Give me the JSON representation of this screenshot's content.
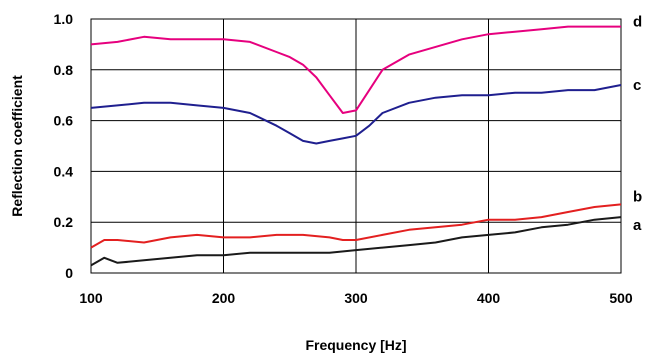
{
  "chart_data": {
    "type": "line",
    "xlabel": "Frequency [Hz]",
    "ylabel": "Reflection coefficient",
    "xlim": [
      100,
      500
    ],
    "ylim": [
      0,
      1.0
    ],
    "x_ticks": [
      100,
      200,
      300,
      400,
      500
    ],
    "y_ticks": [
      0,
      0.2,
      0.4,
      0.6,
      0.8,
      1.0
    ],
    "x_tick_labels": [
      "100",
      "200",
      "300",
      "400",
      "500"
    ],
    "y_tick_labels": [
      "0",
      "0.2",
      "0.4",
      "0.6",
      "0.8",
      "1.0"
    ],
    "grid": "vertical-and-horizontal",
    "legend": "labels at right end of each line",
    "series": [
      {
        "name": "d",
        "color": "#e6007e",
        "x": [
          100,
          120,
          140,
          160,
          180,
          200,
          220,
          240,
          250,
          260,
          270,
          280,
          290,
          300,
          310,
          320,
          340,
          360,
          380,
          400,
          420,
          440,
          460,
          480,
          500
        ],
        "y": [
          0.9,
          0.91,
          0.93,
          0.92,
          0.92,
          0.92,
          0.91,
          0.87,
          0.85,
          0.82,
          0.77,
          0.7,
          0.63,
          0.64,
          0.72,
          0.8,
          0.86,
          0.89,
          0.92,
          0.94,
          0.95,
          0.96,
          0.97,
          0.97,
          0.97
        ]
      },
      {
        "name": "c",
        "color": "#1f1f8f",
        "x": [
          100,
          120,
          140,
          160,
          180,
          200,
          220,
          240,
          250,
          260,
          270,
          280,
          290,
          300,
          310,
          320,
          340,
          360,
          380,
          400,
          420,
          440,
          460,
          480,
          500
        ],
        "y": [
          0.65,
          0.66,
          0.67,
          0.67,
          0.66,
          0.65,
          0.63,
          0.58,
          0.55,
          0.52,
          0.51,
          0.52,
          0.53,
          0.54,
          0.58,
          0.63,
          0.67,
          0.69,
          0.7,
          0.7,
          0.71,
          0.71,
          0.72,
          0.72,
          0.74
        ]
      },
      {
        "name": "b",
        "color": "#e32020",
        "x": [
          100,
          110,
          120,
          140,
          160,
          180,
          200,
          220,
          240,
          260,
          280,
          290,
          300,
          320,
          340,
          360,
          380,
          400,
          420,
          440,
          460,
          480,
          500
        ],
        "y": [
          0.1,
          0.13,
          0.13,
          0.12,
          0.14,
          0.15,
          0.14,
          0.14,
          0.15,
          0.15,
          0.14,
          0.13,
          0.13,
          0.15,
          0.17,
          0.18,
          0.19,
          0.21,
          0.21,
          0.22,
          0.24,
          0.26,
          0.27
        ]
      },
      {
        "name": "a",
        "color": "#1a1a1a",
        "x": [
          100,
          110,
          120,
          140,
          160,
          180,
          200,
          220,
          240,
          260,
          280,
          300,
          320,
          340,
          360,
          380,
          400,
          420,
          440,
          460,
          480,
          500
        ],
        "y": [
          0.03,
          0.06,
          0.04,
          0.05,
          0.06,
          0.07,
          0.07,
          0.08,
          0.08,
          0.08,
          0.08,
          0.09,
          0.1,
          0.11,
          0.12,
          0.14,
          0.15,
          0.16,
          0.18,
          0.19,
          0.21,
          0.22
        ]
      }
    ]
  }
}
